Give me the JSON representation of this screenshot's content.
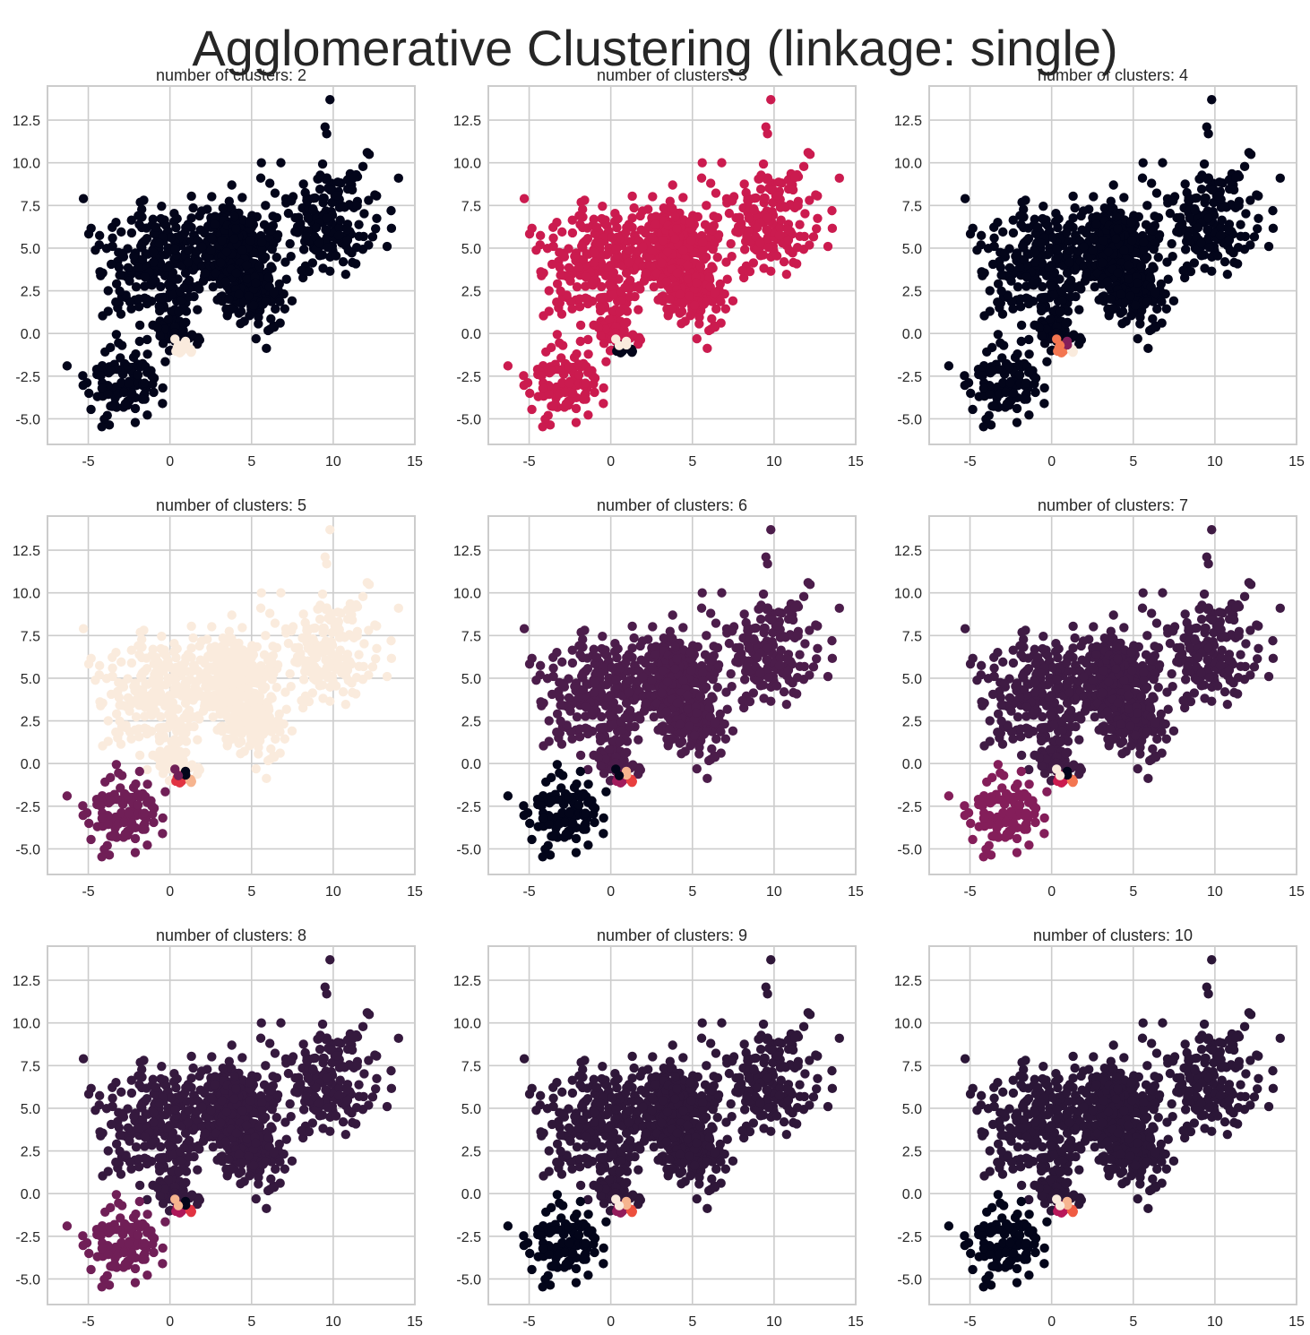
{
  "figure_title": "Agglomerative Clustering (linkage: single)",
  "colors": {
    "axis_frame": "#cccccc",
    "grid": "#cccccc",
    "text": "#262626",
    "background": "#ffffff"
  },
  "chart_data": [
    {
      "type": "scatter",
      "title": "number of clusters: 2",
      "xlim": [
        -7.5,
        15
      ],
      "ylim": [
        -6.5,
        14.5
      ],
      "grid": true,
      "xticks": [
        "-5",
        "0",
        "5",
        "10",
        "15"
      ],
      "yticks": [
        "-5.0",
        "-2.5",
        "0.0",
        "2.5",
        "5.0",
        "7.5",
        "10.0",
        "12.5"
      ],
      "n_clusters": 2,
      "palette": [
        "#03051a",
        "#faebdd"
      ]
    },
    {
      "type": "scatter",
      "title": "number of clusters: 3",
      "xlim": [
        -7.5,
        15
      ],
      "ylim": [
        -6.5,
        14.5
      ],
      "grid": true,
      "xticks": [
        "-5",
        "0",
        "5",
        "10",
        "15"
      ],
      "yticks": [
        "-5.0",
        "-2.5",
        "0.0",
        "2.5",
        "5.0",
        "7.5",
        "10.0",
        "12.5"
      ],
      "n_clusters": 3,
      "palette": [
        "#03051a",
        "#cb1b4f",
        "#faebdd"
      ]
    },
    {
      "type": "scatter",
      "title": "number of clusters: 4",
      "xlim": [
        -7.5,
        15
      ],
      "ylim": [
        -6.5,
        14.5
      ],
      "grid": true,
      "xticks": [
        "-5",
        "0",
        "5",
        "10",
        "15"
      ],
      "yticks": [
        "-5.0",
        "-2.5",
        "0.0",
        "2.5",
        "5.0",
        "7.5",
        "10.0",
        "12.5"
      ],
      "n_clusters": 4,
      "palette": [
        "#03051a",
        "#841e5a",
        "#f37651",
        "#faebdd"
      ]
    },
    {
      "type": "scatter",
      "title": "number of clusters: 5",
      "xlim": [
        -7.5,
        15
      ],
      "ylim": [
        -6.5,
        14.5
      ],
      "grid": true,
      "xticks": [
        "-5",
        "0",
        "5",
        "10",
        "15"
      ],
      "yticks": [
        "-5.0",
        "-2.5",
        "0.0",
        "2.5",
        "5.0",
        "7.5",
        "10.0",
        "12.5"
      ],
      "n_clusters": 5,
      "palette": [
        "#03051a",
        "#701f57",
        "#e13342",
        "#f6b48f",
        "#faebdd"
      ]
    },
    {
      "type": "scatter",
      "title": "number of clusters: 6",
      "xlim": [
        -7.5,
        15
      ],
      "ylim": [
        -6.5,
        14.5
      ],
      "grid": true,
      "xticks": [
        "-5",
        "0",
        "5",
        "10",
        "15"
      ],
      "yticks": [
        "-5.0",
        "-2.5",
        "0.0",
        "2.5",
        "5.0",
        "7.5",
        "10.0",
        "12.5"
      ],
      "n_clusters": 6,
      "palette": [
        "#03051a",
        "#4c1d4b",
        "#a11a5b",
        "#e83f3f",
        "#f6b48f",
        "#faebdd"
      ]
    },
    {
      "type": "scatter",
      "title": "number of clusters: 7",
      "xlim": [
        -7.5,
        15
      ],
      "ylim": [
        -6.5,
        14.5
      ],
      "grid": true,
      "xticks": [
        "-5",
        "0",
        "5",
        "10",
        "15"
      ],
      "yticks": [
        "-5.0",
        "-2.5",
        "0.0",
        "2.5",
        "5.0",
        "7.5",
        "10.0",
        "12.5"
      ],
      "n_clusters": 7,
      "palette": [
        "#03051a",
        "#3f1b44",
        "#841e5a",
        "#cb1b4f",
        "#f37651",
        "#f6b48f",
        "#faebdd"
      ]
    },
    {
      "type": "scatter",
      "title": "number of clusters: 8",
      "xlim": [
        -7.5,
        15
      ],
      "ylim": [
        -6.5,
        14.5
      ],
      "grid": true,
      "xticks": [
        "-5",
        "0",
        "5",
        "10",
        "15"
      ],
      "yticks": [
        "-5.0",
        "-2.5",
        "0.0",
        "2.5",
        "5.0",
        "7.5",
        "10.0",
        "12.5"
      ],
      "n_clusters": 8,
      "palette": [
        "#03051a",
        "#35193e",
        "#701f57",
        "#ad1759",
        "#e13342",
        "#f37651",
        "#f6b48f",
        "#faebdd"
      ]
    },
    {
      "type": "scatter",
      "title": "number of clusters: 9",
      "xlim": [
        -7.5,
        15
      ],
      "ylim": [
        -6.5,
        14.5
      ],
      "grid": true,
      "xticks": [
        "-5",
        "0",
        "5",
        "10",
        "15"
      ],
      "yticks": [
        "-5.0",
        "-2.5",
        "0.0",
        "2.5",
        "5.0",
        "7.5",
        "10.0",
        "12.5"
      ],
      "n_clusters": 9,
      "palette": [
        "#03051a",
        "#2f1739",
        "#5e1f52",
        "#931c5b",
        "#cb1b4f",
        "#ed503e",
        "#f37651",
        "#f6b48f",
        "#faebdd"
      ]
    },
    {
      "type": "scatter",
      "title": "number of clusters: 10",
      "xlim": [
        -7.5,
        15
      ],
      "ylim": [
        -6.5,
        14.5
      ],
      "grid": true,
      "xticks": [
        "-5",
        "0",
        "5",
        "10",
        "15"
      ],
      "yticks": [
        "-5.0",
        "-2.5",
        "0.0",
        "2.5",
        "5.0",
        "7.5",
        "10.0",
        "12.5"
      ],
      "n_clusters": 10,
      "palette": [
        "#03051a",
        "#2b1637",
        "#4c1d4b",
        "#841e5a",
        "#b9185a",
        "#e13342",
        "#f05b43",
        "#f37651",
        "#f6b48f",
        "#faebdd"
      ]
    }
  ]
}
